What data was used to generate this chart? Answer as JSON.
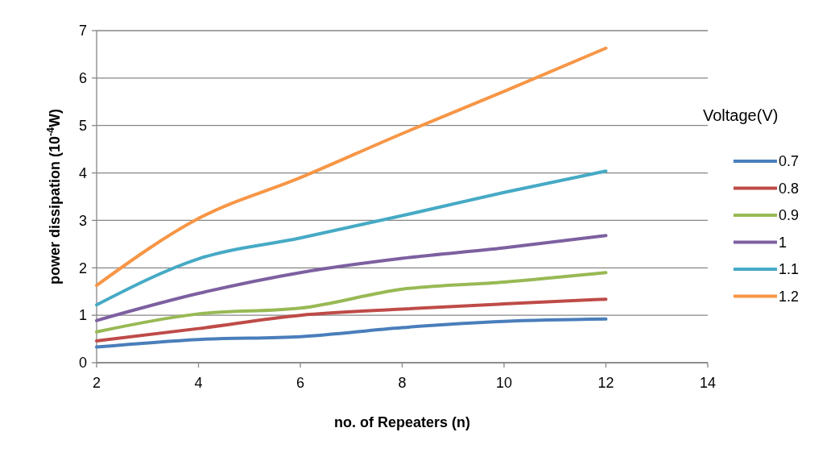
{
  "chart_data": {
    "type": "line",
    "xlabel": "no. of Repeaters (n)",
    "ylabel": "power dissipation (10$^{-4}$W)",
    "legend_title": "Voltage(V)",
    "x": [
      2,
      4,
      6,
      8,
      10,
      12
    ],
    "series": [
      {
        "name": "0.7",
        "color": "#4a7ebb",
        "values": [
          0.33,
          0.49,
          0.55,
          0.74,
          0.87,
          0.92
        ]
      },
      {
        "name": "0.8",
        "color": "#be4b48",
        "values": [
          0.46,
          0.72,
          1.0,
          1.13,
          1.24,
          1.34
        ]
      },
      {
        "name": "0.9",
        "color": "#98b954",
        "values": [
          0.65,
          1.03,
          1.15,
          1.55,
          1.7,
          1.9
        ]
      },
      {
        "name": "1",
        "color": "#7d60a0",
        "values": [
          0.89,
          1.46,
          1.9,
          2.2,
          2.42,
          2.68
        ]
      },
      {
        "name": "1.1",
        "color": "#46aac5",
        "values": [
          1.22,
          2.19,
          2.63,
          3.1,
          3.59,
          4.04
        ]
      },
      {
        "name": "1.2",
        "color": "#f79646",
        "values": [
          1.63,
          3.04,
          3.9,
          4.83,
          5.72,
          6.63
        ]
      }
    ],
    "xlim": [
      2,
      14
    ],
    "xticks": [
      2,
      4,
      6,
      8,
      10,
      12,
      14
    ],
    "ylim": [
      0,
      7
    ],
    "yticks": [
      0,
      1,
      2,
      3,
      4,
      5,
      6,
      7
    ],
    "grid": "y",
    "legend": "right",
    "marker": "none",
    "line_style": "solid"
  }
}
